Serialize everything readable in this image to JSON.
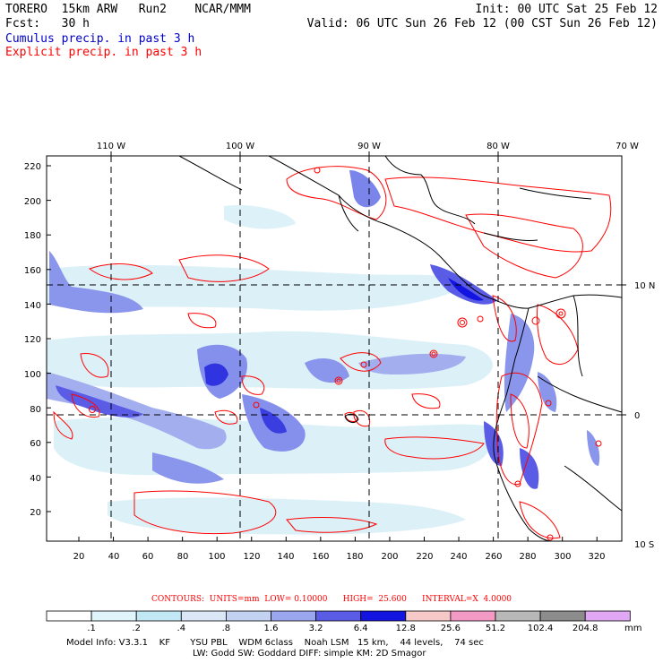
{
  "header": {
    "model": "TORERO  15km ARW   Run2    NCAR/MMM",
    "init": "Init: 00 UTC Sat 25 Feb 12",
    "fcst": "Fcst:   30 h",
    "valid": "Valid: 06 UTC Sun 26 Feb 12 (00 CST Sun 26 Feb 12)",
    "cumulus": "Cumulus precip. in past 3 h",
    "explicit": "Explicit precip. in past 3 h"
  },
  "colors": {
    "cumulus_label": "#0000cc",
    "explicit_label": "#ff0000",
    "contour": "#ff0000",
    "coast": "#000000",
    "grid": "#000000"
  },
  "axes": {
    "top_lon": [
      "110 W",
      "100 W",
      "90 W",
      "80 W",
      "70 W"
    ],
    "right_lat": [
      "10 N",
      "0",
      "10 S"
    ],
    "left_y": [
      "20",
      "40",
      "60",
      "80",
      "100",
      "120",
      "140",
      "160",
      "180",
      "200",
      "220"
    ],
    "bottom_x": [
      "20",
      "40",
      "60",
      "80",
      "100",
      "120",
      "140",
      "160",
      "180",
      "200",
      "220",
      "240",
      "260",
      "280",
      "300",
      "320"
    ]
  },
  "contours_line": "CONTOURS:  UNITS=mm  LOW= 0.10000      HIGH=  25.600      INTERVAL=X  4.0000",
  "legend": {
    "labels": [
      ".1",
      ".2",
      ".4",
      ".8",
      "1.6",
      "3.2",
      "6.4",
      "12.8",
      "25.6",
      "51.2",
      "102.4",
      "204.8"
    ],
    "unit": "mm",
    "colors": [
      "#ffffff",
      "#e0f4fb",
      "#c2e7f5",
      "#dbe7f7",
      "#c4d2f2",
      "#9aa6ee",
      "#5a5ce6",
      "#1414e0",
      "#f7c8c8",
      "#f39ac4",
      "#b8b8b8",
      "#8c8c8c",
      "#e0a8f4"
    ]
  },
  "model_info": {
    "line1": "Model Info: V3.3.1    KF       YSU PBL    WDM 6class    Noah LSM   15 km,    44 levels,    74 sec",
    "line2": "LW: Godd SW: Goddard DIFF: simple KM: 2D Smagor"
  }
}
